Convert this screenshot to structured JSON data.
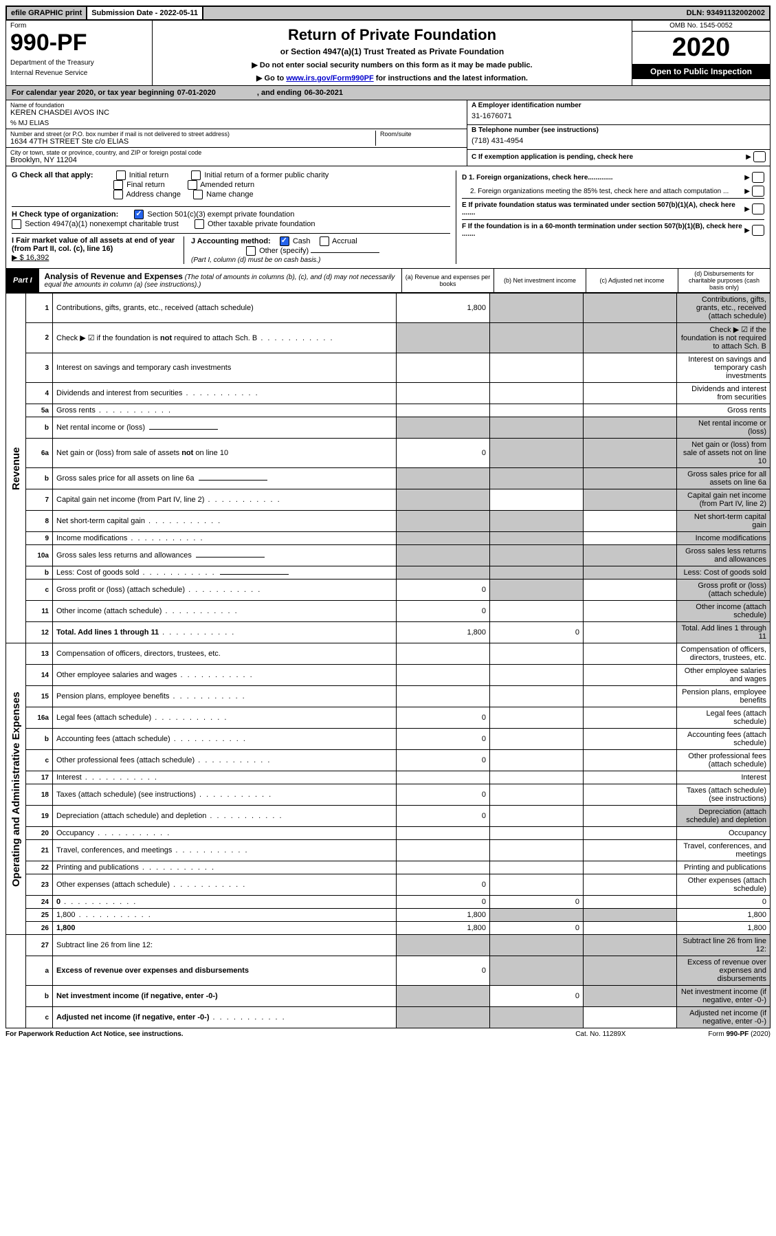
{
  "topbar": {
    "efile": "efile GRAPHIC print",
    "subdate_label": "Submission Date - ",
    "subdate": "2022-05-11",
    "dln_label": "DLN: ",
    "dln": "93491132002002"
  },
  "header": {
    "form_label": "Form",
    "form_num": "990-PF",
    "dept1": "Department of the Treasury",
    "dept2": "Internal Revenue Service",
    "title": "Return of Private Foundation",
    "subtitle": "or Section 4947(a)(1) Trust Treated as Private Foundation",
    "note1": "▶ Do not enter social security numbers on this form as it may be made public.",
    "note2_a": "▶ Go to ",
    "note2_link": "www.irs.gov/Form990PF",
    "note2_b": " for instructions and the latest information.",
    "omb": "OMB No. 1545-0052",
    "year": "2020",
    "open": "Open to Public Inspection"
  },
  "cal": {
    "text_a": "For calendar year 2020, or tax year beginning ",
    "begin": "07-01-2020",
    "text_b": ", and ending ",
    "end": "06-30-2021"
  },
  "info": {
    "name_label": "Name of foundation",
    "name": "KEREN CHASDEI AVOS INC",
    "care_of": "% MJ ELIAS",
    "addr_label": "Number and street (or P.O. box number if mail is not delivered to street address)",
    "addr": "1634 47TH STREET Ste c/o ELIAS",
    "room_label": "Room/suite",
    "city_label": "City or town, state or province, country, and ZIP or foreign postal code",
    "city": "Brooklyn, NY  11204",
    "ein_label": "A Employer identification number",
    "ein": "31-1676071",
    "tel_label": "B Telephone number (see instructions)",
    "tel": "(718) 431-4954",
    "c_label": "C If exemption application is pending, check here",
    "d1": "D 1. Foreign organizations, check here.............",
    "d2": "2. Foreign organizations meeting the 85% test, check here and attach computation ...",
    "e_label": "E  If private foundation status was terminated under section 507(b)(1)(A), check here .......",
    "f_label": "F  If the foundation is in a 60-month termination under section 507(b)(1)(B), check here .......",
    "g_label": "G Check all that apply:",
    "g_opts": [
      "Initial return",
      "Initial return of a former public charity",
      "Final return",
      "Amended return",
      "Address change",
      "Name change"
    ],
    "h_label": "H Check type of organization:",
    "h1": "Section 501(c)(3) exempt private foundation",
    "h2": "Section 4947(a)(1) nonexempt charitable trust",
    "h3": "Other taxable private foundation",
    "i_label": "I Fair market value of all assets at end of year (from Part II, col. (c), line 16)",
    "i_val": "▶ $  16,392",
    "j_label": "J Accounting method:",
    "j_cash": "Cash",
    "j_accrual": "Accrual",
    "j_other": "Other (specify)",
    "j_note": "(Part I, column (d) must be on cash basis.)"
  },
  "part1": {
    "tab": "Part I",
    "title": "Analysis of Revenue and Expenses",
    "note": " (The total of amounts in columns (b), (c), and (d) may not necessarily equal the amounts in column (a) (see instructions).)",
    "col_a": "(a) Revenue and expenses per books",
    "col_b": "(b) Net investment income",
    "col_c": "(c) Adjusted net income",
    "col_d": "(d) Disbursements for charitable purposes (cash basis only)"
  },
  "side": {
    "rev": "Revenue",
    "exp": "Operating and Administrative Expenses"
  },
  "rows": [
    {
      "n": "1",
      "d": "Contributions, gifts, grants, etc., received (attach schedule)",
      "a": "1,800",
      "bGrey": true,
      "cGrey": true,
      "dGrey": true
    },
    {
      "n": "2",
      "d": "Check ▶ ☑ if the foundation is not required to attach Sch. B",
      "allGrey": true,
      "dots": true
    },
    {
      "n": "3",
      "d": "Interest on savings and temporary cash investments"
    },
    {
      "n": "4",
      "d": "Dividends and interest from securities",
      "dots": true
    },
    {
      "n": "5a",
      "d": "Gross rents",
      "dots": true
    },
    {
      "n": "b",
      "d": "Net rental income or (loss)",
      "inline": true,
      "allGrey": true
    },
    {
      "n": "6a",
      "d": "Net gain or (loss) from sale of assets not on line 10",
      "a": "0",
      "bGrey": true,
      "cGrey": true,
      "dGrey": true
    },
    {
      "n": "b",
      "d": "Gross sales price for all assets on line 6a",
      "inline": true,
      "allGrey": true
    },
    {
      "n": "7",
      "d": "Capital gain net income (from Part IV, line 2)",
      "dots": true,
      "aGrey": true,
      "cGrey": true,
      "dGrey": true
    },
    {
      "n": "8",
      "d": "Net short-term capital gain",
      "dots": true,
      "aGrey": true,
      "bGrey": true,
      "dGrey": true
    },
    {
      "n": "9",
      "d": "Income modifications",
      "dots": true,
      "aGrey": true,
      "bGrey": true,
      "dGrey": true
    },
    {
      "n": "10a",
      "d": "Gross sales less returns and allowances",
      "inline": true,
      "allGrey": true
    },
    {
      "n": "b",
      "d": "Less: Cost of goods sold",
      "dots": true,
      "inline": true,
      "allGrey": true
    },
    {
      "n": "c",
      "d": "Gross profit or (loss) (attach schedule)",
      "dots": true,
      "a": "0",
      "bGrey": true,
      "dGrey": true
    },
    {
      "n": "11",
      "d": "Other income (attach schedule)",
      "dots": true,
      "a": "0",
      "dGrey": true
    },
    {
      "n": "12",
      "d": "Total. Add lines 1 through 11",
      "dots": true,
      "bold": true,
      "a": "1,800",
      "b": "0",
      "dGrey": true
    }
  ],
  "erows": [
    {
      "n": "13",
      "d": "Compensation of officers, directors, trustees, etc."
    },
    {
      "n": "14",
      "d": "Other employee salaries and wages",
      "dots": true
    },
    {
      "n": "15",
      "d": "Pension plans, employee benefits",
      "dots": true
    },
    {
      "n": "16a",
      "d": "Legal fees (attach schedule)",
      "dots": true,
      "a": "0"
    },
    {
      "n": "b",
      "d": "Accounting fees (attach schedule)",
      "dots": true,
      "a": "0"
    },
    {
      "n": "c",
      "d": "Other professional fees (attach schedule)",
      "dots": true,
      "a": "0"
    },
    {
      "n": "17",
      "d": "Interest",
      "dots": true
    },
    {
      "n": "18",
      "d": "Taxes (attach schedule) (see instructions)",
      "dots": true,
      "a": "0"
    },
    {
      "n": "19",
      "d": "Depreciation (attach schedule) and depletion",
      "dots": true,
      "a": "0",
      "dGrey": true
    },
    {
      "n": "20",
      "d": "Occupancy",
      "dots": true
    },
    {
      "n": "21",
      "d": "Travel, conferences, and meetings",
      "dots": true
    },
    {
      "n": "22",
      "d": "Printing and publications",
      "dots": true
    },
    {
      "n": "23",
      "d": "Other expenses (attach schedule)",
      "dots": true,
      "a": "0"
    },
    {
      "n": "24",
      "d": "0",
      "dots": true,
      "bold": true,
      "a": "0",
      "b": "0"
    },
    {
      "n": "25",
      "d": "1,800",
      "dots": true,
      "a": "1,800",
      "bGrey": true,
      "cGrey": true
    },
    {
      "n": "26",
      "d": "1,800",
      "bold": true,
      "a": "1,800",
      "b": "0"
    }
  ],
  "brows": [
    {
      "n": "27",
      "d": "Subtract line 26 from line 12:",
      "allGrey": true
    },
    {
      "n": "a",
      "d": "Excess of revenue over expenses and disbursements",
      "bold": true,
      "a": "0",
      "bGrey": true,
      "cGrey": true,
      "dGrey": true
    },
    {
      "n": "b",
      "d": "Net investment income (if negative, enter -0-)",
      "bold": true,
      "aGrey": true,
      "b": "0",
      "cGrey": true,
      "dGrey": true
    },
    {
      "n": "c",
      "d": "Adjusted net income (if negative, enter -0-)",
      "dots": true,
      "bold": true,
      "aGrey": true,
      "bGrey": true,
      "dGrey": true
    }
  ],
  "footer": {
    "left": "For Paperwork Reduction Act Notice, see instructions.",
    "mid": "Cat. No. 11289X",
    "right": "Form 990-PF (2020)"
  }
}
